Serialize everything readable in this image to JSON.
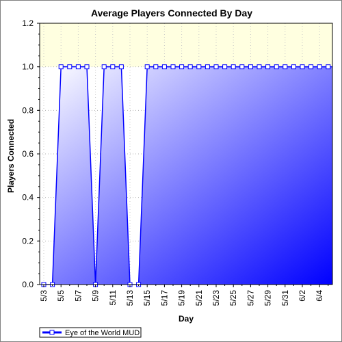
{
  "chart_data": {
    "type": "area",
    "title": "Average Players Connected By Day",
    "xlabel": "Day",
    "ylabel": "Players Connected",
    "ylim": [
      0,
      1.2
    ],
    "yticks": [
      "0.0",
      "0.2",
      "0.4",
      "0.6",
      "0.8",
      "1.0",
      "1.2"
    ],
    "x": [
      "5/3",
      "5/4",
      "5/5",
      "5/6",
      "5/7",
      "5/8",
      "5/9",
      "5/10",
      "5/11",
      "5/12",
      "5/13",
      "5/14",
      "5/15",
      "5/16",
      "5/17",
      "5/18",
      "5/19",
      "5/20",
      "5/21",
      "5/22",
      "5/23",
      "5/24",
      "5/25",
      "5/26",
      "5/27",
      "5/28",
      "5/29",
      "5/30",
      "5/31",
      "6/1",
      "6/2",
      "6/3",
      "6/4",
      "6/5"
    ],
    "xtick_labels": [
      "5/3",
      "5/5",
      "5/7",
      "5/9",
      "5/11",
      "5/13",
      "5/15",
      "5/17",
      "5/19",
      "5/21",
      "5/23",
      "5/25",
      "5/27",
      "5/29",
      "5/31",
      "6/2",
      "6/4"
    ],
    "series": [
      {
        "name": "Eye of the World MUD",
        "values": [
          0,
          0,
          1,
          1,
          1,
          1,
          0,
          1,
          1,
          1,
          0,
          0,
          1,
          1,
          1,
          1,
          1,
          1,
          1,
          1,
          1,
          1,
          1,
          1,
          1,
          1,
          1,
          1,
          1,
          1,
          1,
          1,
          1,
          1
        ]
      }
    ],
    "grid": true,
    "legend_position": "bottom-left",
    "colors": {
      "plot_band": "#FFFFE0",
      "area_light": "#FFFFFF",
      "area_dark": "#0000FF",
      "line": "#0000FF",
      "marker_fill": "#FFFFFF"
    }
  }
}
